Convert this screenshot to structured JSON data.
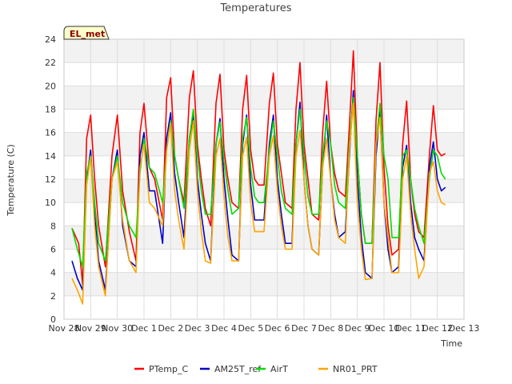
{
  "chart_data": {
    "type": "line",
    "title": "Temperatures",
    "xlabel": "Time",
    "ylabel": "Temperature (C)",
    "ylim": [
      0,
      24
    ],
    "yticks": [
      0,
      2,
      4,
      6,
      8,
      10,
      12,
      14,
      16,
      18,
      20,
      22,
      24
    ],
    "xlim": [
      0,
      15
    ],
    "xticks": [
      {
        "v": 0,
        "label": "Nov 28"
      },
      {
        "v": 1,
        "label": "Nov 29"
      },
      {
        "v": 2,
        "label": "Nov 30"
      },
      {
        "v": 3,
        "label": "Dec 1"
      },
      {
        "v": 4,
        "label": "Dec 2"
      },
      {
        "v": 5,
        "label": "Dec 3"
      },
      {
        "v": 6,
        "label": "Dec 4"
      },
      {
        "v": 7,
        "label": "Dec 5"
      },
      {
        "v": 8,
        "label": "Dec 6"
      },
      {
        "v": 9,
        "label": "Dec 7"
      },
      {
        "v": 10,
        "label": "Dec 8"
      },
      {
        "v": 11,
        "label": "Dec 9"
      },
      {
        "v": 12,
        "label": "Dec 10"
      },
      {
        "v": 13,
        "label": "Dec 11"
      },
      {
        "v": 14,
        "label": "Dec 12"
      },
      {
        "v": 15,
        "label": "Dec 13"
      }
    ],
    "station_label": "EL_met",
    "series": [
      {
        "name": "PTemp_C",
        "color": "#ff0000",
        "x": [
          0.3,
          0.55,
          0.7,
          0.85,
          1.0,
          1.15,
          1.3,
          1.55,
          1.8,
          2.0,
          2.2,
          2.45,
          2.7,
          2.85,
          3.0,
          3.2,
          3.4,
          3.7,
          3.85,
          4.0,
          4.15,
          4.3,
          4.5,
          4.7,
          4.85,
          5.0,
          5.15,
          5.3,
          5.5,
          5.7,
          5.85,
          6.0,
          6.15,
          6.3,
          6.55,
          6.7,
          6.85,
          7.0,
          7.15,
          7.3,
          7.5,
          7.7,
          7.85,
          8.0,
          8.15,
          8.3,
          8.55,
          8.7,
          8.85,
          9.0,
          9.15,
          9.3,
          9.55,
          9.7,
          9.85,
          10.0,
          10.15,
          10.3,
          10.55,
          10.7,
          10.85,
          11.0,
          11.15,
          11.3,
          11.55,
          11.7,
          11.85,
          12.0,
          12.15,
          12.3,
          12.55,
          12.7,
          12.85,
          13.0,
          13.15,
          13.3,
          13.5,
          13.7,
          13.85,
          14.0,
          14.15,
          14.3
        ],
        "y": [
          7.8,
          6.5,
          3.0,
          15.5,
          17.5,
          12.0,
          8.0,
          4.5,
          14.0,
          17.5,
          11.0,
          7.5,
          5.0,
          16.0,
          18.5,
          13.0,
          12.0,
          8.5,
          19.0,
          20.7,
          14.0,
          12.0,
          10.0,
          19.0,
          21.3,
          15.0,
          12.0,
          9.5,
          8.0,
          18.5,
          21.0,
          14.5,
          12.0,
          10.0,
          9.5,
          18.0,
          20.9,
          14.5,
          12.0,
          11.5,
          11.5,
          18.5,
          21.1,
          15.0,
          12.5,
          10.0,
          9.5,
          18.0,
          22.0,
          15.0,
          12.0,
          9.0,
          8.5,
          16.0,
          20.4,
          15.0,
          12.5,
          11.0,
          10.5,
          16.5,
          23.0,
          14.0,
          9.0,
          6.5,
          6.5,
          17.0,
          22.0,
          13.0,
          8.0,
          5.5,
          6.0,
          15.0,
          18.7,
          12.0,
          9.0,
          7.5,
          7.0,
          14.0,
          18.3,
          14.5,
          14.0,
          14.2
        ]
      },
      {
        "name": "AM25T_ref",
        "color": "#0000cc",
        "x": [
          0.3,
          0.5,
          0.7,
          0.85,
          1.0,
          1.15,
          1.3,
          1.55,
          1.8,
          2.0,
          2.2,
          2.45,
          2.7,
          2.85,
          3.0,
          3.2,
          3.4,
          3.7,
          3.85,
          4.0,
          4.15,
          4.3,
          4.5,
          4.7,
          4.85,
          5.0,
          5.15,
          5.3,
          5.5,
          5.7,
          5.85,
          6.0,
          6.15,
          6.3,
          6.55,
          6.7,
          6.85,
          7.0,
          7.15,
          7.3,
          7.5,
          7.7,
          7.85,
          8.0,
          8.15,
          8.3,
          8.55,
          8.7,
          8.85,
          9.0,
          9.15,
          9.3,
          9.55,
          9.7,
          9.85,
          10.0,
          10.15,
          10.3,
          10.55,
          10.7,
          10.85,
          11.0,
          11.15,
          11.3,
          11.55,
          11.7,
          11.85,
          12.0,
          12.15,
          12.3,
          12.55,
          12.7,
          12.85,
          13.0,
          13.15,
          13.3,
          13.5,
          13.7,
          13.85,
          14.0,
          14.15,
          14.3
        ],
        "y": [
          5.0,
          3.5,
          2.5,
          12.0,
          14.5,
          9.0,
          5.0,
          2.5,
          12.0,
          14.5,
          8.0,
          5.0,
          4.5,
          14.0,
          16.0,
          11.0,
          11.0,
          6.5,
          15.5,
          17.7,
          12.5,
          10.0,
          7.0,
          15.5,
          17.5,
          12.0,
          9.0,
          6.5,
          5.0,
          15.0,
          17.2,
          12.0,
          8.5,
          5.5,
          5.0,
          15.0,
          17.5,
          11.5,
          8.5,
          8.5,
          8.5,
          15.0,
          17.5,
          12.0,
          9.0,
          6.5,
          6.5,
          15.0,
          18.6,
          12.0,
          8.0,
          6.0,
          5.5,
          13.0,
          17.5,
          12.0,
          9.0,
          7.0,
          7.5,
          14.0,
          19.6,
          12.0,
          7.0,
          4.0,
          3.5,
          14.0,
          18.0,
          10.0,
          6.0,
          4.0,
          4.5,
          13.0,
          14.9,
          10.0,
          7.0,
          6.0,
          5.0,
          13.0,
          15.2,
          12.0,
          11.0,
          11.3
        ]
      },
      {
        "name": "AirT",
        "color": "#00dd00",
        "x": [
          0.3,
          0.5,
          0.7,
          0.85,
          1.0,
          1.15,
          1.3,
          1.55,
          1.8,
          2.0,
          2.2,
          2.45,
          2.7,
          2.85,
          3.0,
          3.2,
          3.4,
          3.7,
          3.85,
          4.0,
          4.15,
          4.3,
          4.5,
          4.7,
          4.85,
          5.0,
          5.15,
          5.3,
          5.5,
          5.7,
          5.85,
          6.0,
          6.15,
          6.3,
          6.55,
          6.7,
          6.85,
          7.0,
          7.15,
          7.3,
          7.5,
          7.7,
          7.85,
          8.0,
          8.15,
          8.3,
          8.55,
          8.7,
          8.85,
          9.0,
          9.15,
          9.3,
          9.55,
          9.7,
          9.85,
          10.0,
          10.15,
          10.3,
          10.55,
          10.7,
          10.85,
          11.0,
          11.15,
          11.3,
          11.55,
          11.7,
          11.85,
          12.0,
          12.15,
          12.3,
          12.55,
          12.7,
          12.85,
          13.0,
          13.15,
          13.3,
          13.5,
          13.7,
          13.85,
          14.0,
          14.15,
          14.3
        ],
        "y": [
          7.8,
          6.0,
          4.5,
          12.5,
          14.0,
          10.0,
          6.5,
          5.0,
          12.0,
          14.0,
          10.0,
          8.0,
          7.0,
          12.5,
          15.5,
          13.0,
          12.5,
          10.0,
          14.5,
          17.0,
          14.0,
          12.0,
          9.5,
          15.5,
          18.0,
          14.0,
          11.0,
          9.0,
          9.0,
          15.0,
          16.9,
          13.5,
          11.0,
          9.0,
          9.5,
          15.5,
          17.3,
          13.0,
          10.5,
          10.0,
          10.0,
          14.5,
          17.0,
          14.0,
          11.0,
          9.5,
          9.0,
          15.0,
          18.0,
          14.0,
          10.5,
          9.0,
          9.0,
          14.0,
          17.0,
          15.0,
          11.5,
          10.0,
          9.5,
          15.0,
          19.0,
          14.0,
          9.0,
          6.5,
          6.5,
          15.0,
          18.5,
          14.0,
          12.0,
          7.0,
          7.0,
          14.0,
          14.5,
          12.0,
          9.5,
          8.0,
          6.5,
          12.0,
          14.5,
          14.0,
          12.5,
          12.0
        ]
      },
      {
        "name": "NR01_PRT",
        "color": "#ffa500",
        "x": [
          0.3,
          0.5,
          0.7,
          0.85,
          1.0,
          1.15,
          1.3,
          1.55,
          1.8,
          2.0,
          2.2,
          2.45,
          2.7,
          2.85,
          3.0,
          3.2,
          3.4,
          3.7,
          3.85,
          4.0,
          4.15,
          4.3,
          4.5,
          4.7,
          4.85,
          5.0,
          5.15,
          5.3,
          5.5,
          5.7,
          5.85,
          6.0,
          6.15,
          6.3,
          6.55,
          6.7,
          6.85,
          7.0,
          7.15,
          7.3,
          7.5,
          7.7,
          7.85,
          8.0,
          8.15,
          8.3,
          8.55,
          8.7,
          8.85,
          9.0,
          9.15,
          9.3,
          9.55,
          9.7,
          9.85,
          10.0,
          10.15,
          10.3,
          10.55,
          10.7,
          10.85,
          11.0,
          11.15,
          11.3,
          11.55,
          11.7,
          11.85,
          12.0,
          12.15,
          12.3,
          12.55,
          12.7,
          12.85,
          13.0,
          13.15,
          13.3,
          13.5,
          13.7,
          13.85,
          14.0,
          14.15,
          14.3
        ],
        "y": [
          3.5,
          2.5,
          1.3,
          11.5,
          13.9,
          8.0,
          4.5,
          2.0,
          12.0,
          13.5,
          8.5,
          5.0,
          4.0,
          13.0,
          15.0,
          10.0,
          9.5,
          8.0,
          14.5,
          16.8,
          11.0,
          8.5,
          6.0,
          14.5,
          17.0,
          11.0,
          7.5,
          5.0,
          4.8,
          14.0,
          15.5,
          10.5,
          7.0,
          5.0,
          5.0,
          14.0,
          15.6,
          10.0,
          7.5,
          7.5,
          7.5,
          14.0,
          15.7,
          11.0,
          8.0,
          6.0,
          6.0,
          14.0,
          16.2,
          12.0,
          8.0,
          6.0,
          5.5,
          13.0,
          15.5,
          12.0,
          8.5,
          7.0,
          6.5,
          14.5,
          18.5,
          10.0,
          6.0,
          3.4,
          3.5,
          15.0,
          17.3,
          10.0,
          7.0,
          4.0,
          4.0,
          12.0,
          14.0,
          9.0,
          6.0,
          3.5,
          4.5,
          12.5,
          13.5,
          11.0,
          10.0,
          9.8
        ]
      }
    ]
  }
}
